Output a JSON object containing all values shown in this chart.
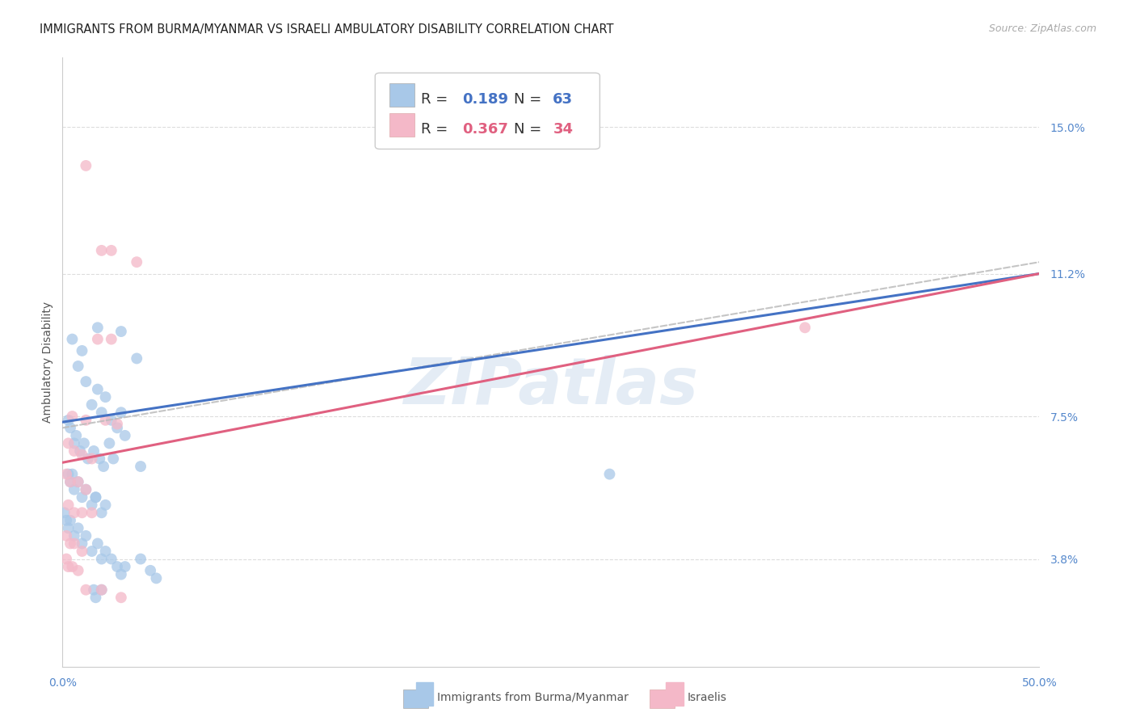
{
  "title": "IMMIGRANTS FROM BURMA/MYANMAR VS ISRAELI AMBULATORY DISABILITY CORRELATION CHART",
  "source": "Source: ZipAtlas.com",
  "ylabel": "Ambulatory Disability",
  "xlim": [
    0.0,
    0.5
  ],
  "ylim": [
    0.01,
    0.168
  ],
  "xtick_labels": [
    "0.0%",
    "50.0%"
  ],
  "xtick_positions": [
    0.0,
    0.5
  ],
  "ytick_labels": [
    "3.8%",
    "7.5%",
    "11.2%",
    "15.0%"
  ],
  "ytick_positions": [
    0.038,
    0.075,
    0.112,
    0.15
  ],
  "grid_color": "#dddddd",
  "bg_color": "#ffffff",
  "blue_color": "#a8c8e8",
  "blue_line_color": "#4472c4",
  "pink_color": "#f4b8c8",
  "pink_line_color": "#e06080",
  "dashed_color": "#bbbbbb",
  "watermark": "ZIPatlas",
  "r_blue": "0.189",
  "n_blue": "63",
  "r_pink": "0.367",
  "n_pink": "34",
  "blue_line_x0": 0.0,
  "blue_line_y0": 0.0735,
  "blue_line_x1": 0.5,
  "blue_line_y1": 0.112,
  "dashed_line_x0": 0.0,
  "dashed_line_y0": 0.072,
  "dashed_line_x1": 0.5,
  "dashed_line_y1": 0.115,
  "pink_line_x0": 0.0,
  "pink_line_y0": 0.063,
  "pink_line_x1": 0.5,
  "pink_line_y1": 0.112,
  "blue_scatter_x": [
    0.003,
    0.004,
    0.005,
    0.006,
    0.007,
    0.008,
    0.009,
    0.01,
    0.011,
    0.012,
    0.013,
    0.015,
    0.016,
    0.017,
    0.018,
    0.019,
    0.02,
    0.021,
    0.022,
    0.024,
    0.025,
    0.026,
    0.028,
    0.03,
    0.032,
    0.003,
    0.004,
    0.005,
    0.006,
    0.008,
    0.01,
    0.012,
    0.015,
    0.017,
    0.02,
    0.022,
    0.001,
    0.002,
    0.003,
    0.004,
    0.006,
    0.008,
    0.01,
    0.012,
    0.015,
    0.018,
    0.02,
    0.022,
    0.025,
    0.028,
    0.03,
    0.032,
    0.04,
    0.045,
    0.048,
    0.018,
    0.03,
    0.038,
    0.016,
    0.017,
    0.02,
    0.04,
    0.28
  ],
  "blue_scatter_y": [
    0.074,
    0.072,
    0.095,
    0.068,
    0.07,
    0.088,
    0.066,
    0.092,
    0.068,
    0.084,
    0.064,
    0.078,
    0.066,
    0.054,
    0.082,
    0.064,
    0.076,
    0.062,
    0.08,
    0.068,
    0.074,
    0.064,
    0.072,
    0.076,
    0.07,
    0.06,
    0.058,
    0.06,
    0.056,
    0.058,
    0.054,
    0.056,
    0.052,
    0.054,
    0.05,
    0.052,
    0.05,
    0.048,
    0.046,
    0.048,
    0.044,
    0.046,
    0.042,
    0.044,
    0.04,
    0.042,
    0.038,
    0.04,
    0.038,
    0.036,
    0.034,
    0.036,
    0.038,
    0.035,
    0.033,
    0.098,
    0.097,
    0.09,
    0.03,
    0.028,
    0.03,
    0.062,
    0.06
  ],
  "pink_scatter_x": [
    0.012,
    0.02,
    0.025,
    0.038,
    0.018,
    0.025,
    0.005,
    0.012,
    0.022,
    0.028,
    0.003,
    0.006,
    0.01,
    0.015,
    0.002,
    0.004,
    0.008,
    0.012,
    0.003,
    0.006,
    0.01,
    0.015,
    0.002,
    0.004,
    0.006,
    0.01,
    0.002,
    0.003,
    0.005,
    0.008,
    0.012,
    0.02,
    0.03,
    0.38
  ],
  "pink_scatter_y": [
    0.14,
    0.118,
    0.118,
    0.115,
    0.095,
    0.095,
    0.075,
    0.074,
    0.074,
    0.073,
    0.068,
    0.066,
    0.065,
    0.064,
    0.06,
    0.058,
    0.058,
    0.056,
    0.052,
    0.05,
    0.05,
    0.05,
    0.044,
    0.042,
    0.042,
    0.04,
    0.038,
    0.036,
    0.036,
    0.035,
    0.03,
    0.03,
    0.028,
    0.098
  ],
  "title_fontsize": 10.5,
  "source_fontsize": 9,
  "legend_fontsize": 13,
  "tick_fontsize": 10,
  "ylabel_fontsize": 10,
  "bottom_legend_label1": "Immigrants from Burma/Myanmar",
  "bottom_legend_label2": "Israelis"
}
